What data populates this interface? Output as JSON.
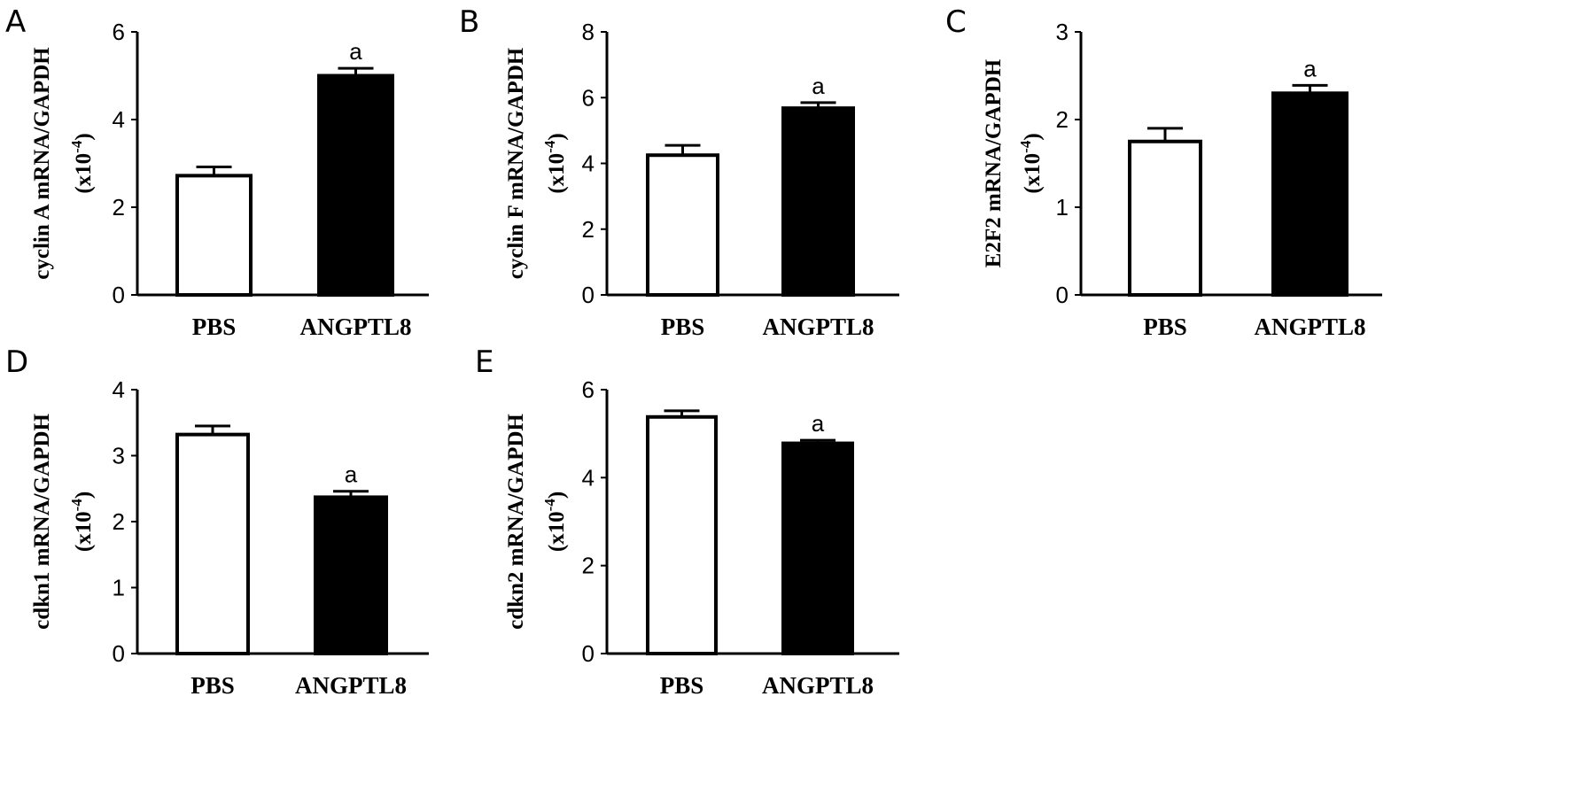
{
  "colors": {
    "axis": "#000000",
    "bar_outline": "#000000",
    "control_fill": "#ffffff",
    "treatment_fill": "#000000"
  },
  "chart_data": [
    {
      "panel": "A",
      "type": "bar",
      "categories": [
        "PBS",
        "ANGPTL8"
      ],
      "values": [
        2.72,
        5.0
      ],
      "error": [
        0.2,
        0.17
      ],
      "annotations": [
        "",
        "a"
      ],
      "ylabel": "cyclin A mRNA/GAPDH",
      "yunit": "(x10",
      "yexp": "-4",
      "yunit_close": ")",
      "ylim": [
        0,
        6
      ],
      "yticks": [
        0,
        2,
        4,
        6
      ],
      "ytick_labels": [
        "0",
        "2",
        "4",
        "6"
      ]
    },
    {
      "panel": "B",
      "type": "bar",
      "categories": [
        "PBS",
        "ANGPTL8"
      ],
      "values": [
        4.25,
        5.68
      ],
      "error": [
        0.3,
        0.17
      ],
      "annotations": [
        "",
        "a"
      ],
      "ylabel": "cyclin F mRNA/GAPDH",
      "yunit": "(x10",
      "yexp": "-4",
      "yunit_close": ")",
      "ylim": [
        0,
        8
      ],
      "yticks": [
        0,
        2,
        4,
        6,
        8
      ],
      "ytick_labels": [
        "0",
        "2",
        "4",
        "6",
        "8"
      ]
    },
    {
      "panel": "C",
      "type": "bar",
      "categories": [
        "PBS",
        "ANGPTL8"
      ],
      "values": [
        1.75,
        2.3
      ],
      "error": [
        0.15,
        0.09
      ],
      "annotations": [
        "",
        "a"
      ],
      "ylabel": "E2F2 mRNA/GAPDH",
      "yunit": "(x10",
      "yexp": "-4",
      "yunit_close": ")",
      "ylim": [
        0,
        3
      ],
      "yticks": [
        0,
        1,
        2,
        3
      ],
      "ytick_labels": [
        "0",
        "1",
        "2",
        "3"
      ]
    },
    {
      "panel": "D",
      "type": "bar",
      "categories": [
        "PBS",
        "ANGPTL8"
      ],
      "values": [
        3.32,
        2.37
      ],
      "error": [
        0.13,
        0.09
      ],
      "annotations": [
        "",
        "a"
      ],
      "ylabel": "cdkn1 mRNA/GAPDH",
      "yunit": "(x10",
      "yexp": "-4",
      "yunit_close": ")",
      "ylim": [
        0,
        4
      ],
      "yticks": [
        0,
        1,
        2,
        3,
        4
      ],
      "ytick_labels": [
        "0",
        "1",
        "2",
        "3",
        "4"
      ]
    },
    {
      "panel": "E",
      "type": "bar",
      "categories": [
        "PBS",
        "ANGPTL8"
      ],
      "values": [
        5.38,
        4.78
      ],
      "error": [
        0.14,
        0.07
      ],
      "annotations": [
        "",
        "a"
      ],
      "ylabel": "cdkn2 mRNA/GAPDH",
      "yunit": "(x10",
      "yexp": "-4",
      "yunit_close": ")",
      "ylim": [
        0,
        6
      ],
      "yticks": [
        0,
        2,
        4,
        6
      ],
      "ytick_labels": [
        "0",
        "2",
        "4",
        "6"
      ]
    }
  ]
}
